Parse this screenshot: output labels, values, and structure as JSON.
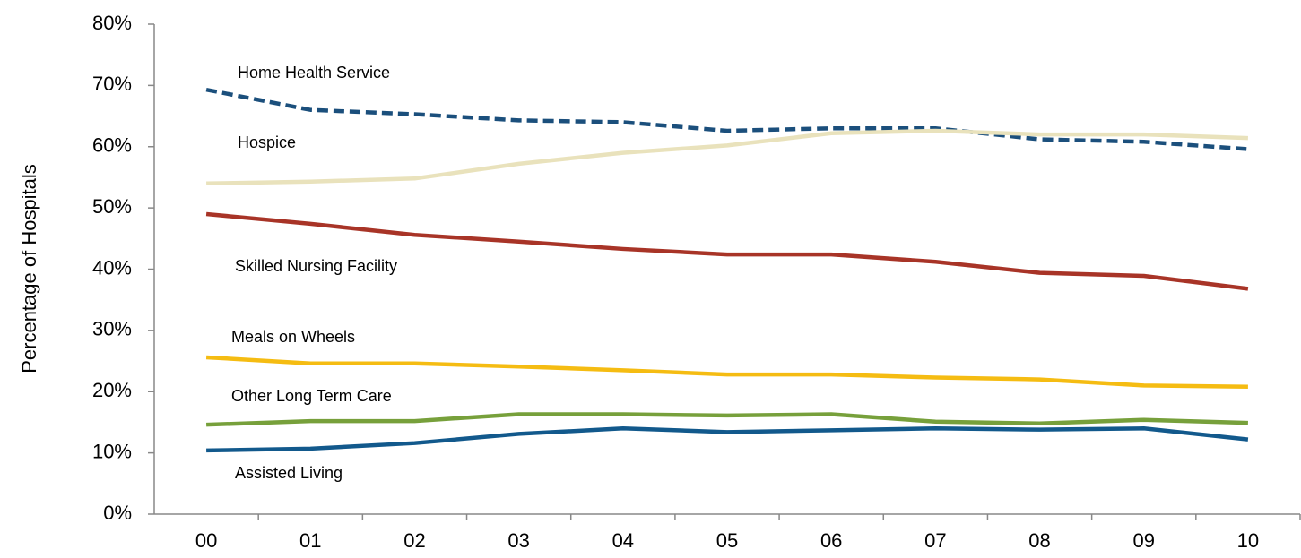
{
  "chart_data": {
    "type": "line",
    "y_axis_label": "Percentage of Hospitals",
    "categories": [
      "00",
      "01",
      "02",
      "03",
      "04",
      "05",
      "06",
      "07",
      "08",
      "09",
      "10"
    ],
    "ylim": [
      0,
      80
    ],
    "yticks": [
      {
        "value": 0,
        "label": "0%"
      },
      {
        "value": 10,
        "label": "10%"
      },
      {
        "value": 20,
        "label": "20%"
      },
      {
        "value": 30,
        "label": "30%"
      },
      {
        "value": 40,
        "label": "40%"
      },
      {
        "value": 50,
        "label": "50%"
      },
      {
        "value": 60,
        "label": "60%"
      },
      {
        "value": 70,
        "label": "70%"
      },
      {
        "value": 80,
        "label": "80%"
      }
    ],
    "grid": false,
    "series": [
      {
        "name": "Home Health Service",
        "color": "#1b4f7c",
        "line_style": "dashed",
        "values": [
          69.3,
          66,
          65.3,
          64.3,
          64,
          62.6,
          63,
          63,
          61.2,
          60.8,
          59.6
        ]
      },
      {
        "name": "Hospice",
        "color": "#e9e2bc",
        "values": [
          54,
          54.3,
          54.8,
          57.2,
          59,
          60.2,
          62.2,
          62.6,
          62,
          62,
          61.4
        ]
      },
      {
        "name": "Skilled Nursing Facility",
        "color": "#a83427",
        "values": [
          49,
          47.4,
          45.6,
          44.5,
          43.3,
          42.4,
          42.4,
          41.2,
          39.4,
          38.9,
          36.8
        ]
      },
      {
        "name": "Meals on Wheels",
        "color": "#f5bc12",
        "values": [
          25.6,
          24.6,
          24.6,
          24.1,
          23.5,
          22.8,
          22.8,
          22.3,
          22,
          21,
          20.8
        ]
      },
      {
        "name": "Other Long Term Care",
        "color": "#77a03b",
        "values": [
          14.6,
          15.2,
          15.2,
          16.3,
          16.3,
          16.1,
          16.3,
          15.1,
          14.8,
          15.4,
          14.9
        ]
      },
      {
        "name": "Assisted Living",
        "color": "#12598c",
        "values": [
          10.4,
          10.7,
          11.6,
          13.1,
          14,
          13.4,
          13.7,
          14,
          13.8,
          14,
          12.2
        ]
      }
    ]
  }
}
